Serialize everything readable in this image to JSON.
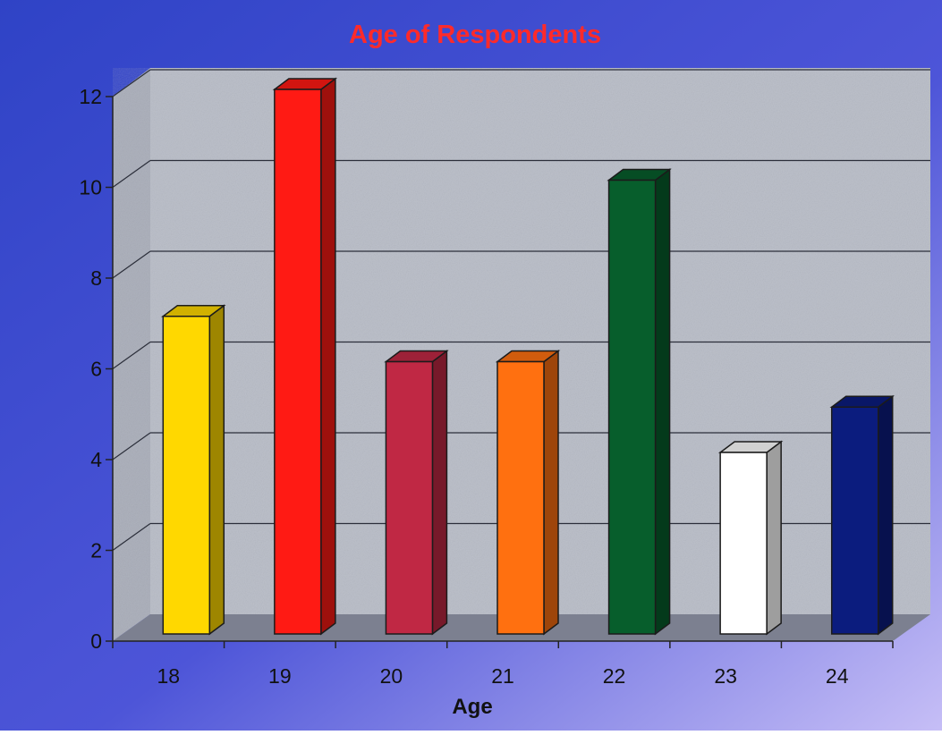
{
  "chart_data": {
    "type": "bar",
    "title": "Age of Respondents",
    "xlabel": "Age",
    "ylabel": "",
    "categories": [
      "18",
      "19",
      "20",
      "21",
      "22",
      "23",
      "24"
    ],
    "values": [
      7,
      12,
      6,
      6,
      10,
      4,
      5
    ],
    "ylim": [
      0,
      12
    ],
    "yticks": [
      "0",
      "2",
      "4",
      "6",
      "8",
      "10",
      "12"
    ],
    "grid": true,
    "legend": "none",
    "bar_colors": [
      "#ffd800",
      "#ff1a14",
      "#c02844",
      "#ff7010",
      "#075e2c",
      "#ffffff",
      "#0b1c7e"
    ]
  },
  "colors": {
    "title": "#ff2a2a",
    "background_start": "#2f43c6",
    "background_end": "#c0b8f6",
    "wall": "#b9bdc7",
    "floor": "#7c8090",
    "text": "#111111"
  }
}
